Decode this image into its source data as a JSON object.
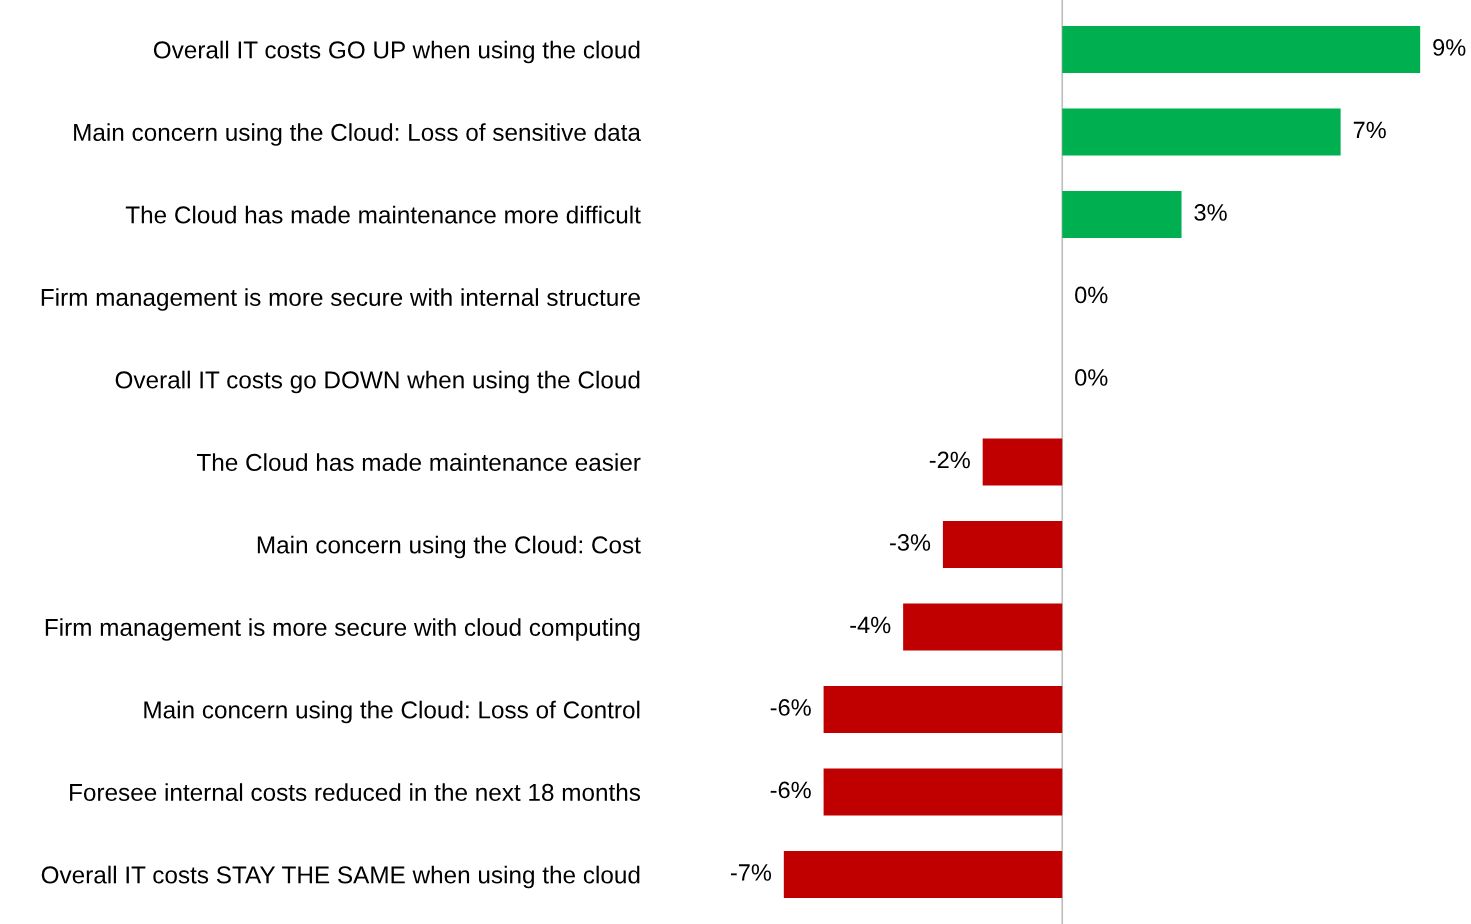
{
  "chart_data": {
    "type": "bar",
    "orientation": "horizontal",
    "categories": [
      "Overall IT costs GO UP when using the cloud",
      "Main concern using the Cloud: Loss of sensitive data",
      "The Cloud has made maintenance more difficult",
      "Firm management is more secure with internal structure",
      "Overall IT costs go DOWN when using the Cloud",
      "The Cloud has made maintenance easier",
      "Main concern using the Cloud: Cost",
      "Firm management is more secure with cloud computing",
      "Main concern using the Cloud: Loss of Control",
      "Foresee internal costs reduced in the next 18 months",
      "Overall IT costs STAY THE SAME when using the cloud"
    ],
    "values": [
      9,
      7,
      3,
      0,
      0,
      -2,
      -3,
      -4,
      -6,
      -6,
      -7
    ],
    "value_labels": [
      "9%",
      "7%",
      "3%",
      "0%",
      "0%",
      "-2%",
      "-3%",
      "-4%",
      "-6%",
      "-6%",
      "-7%"
    ],
    "colors": [
      "#00b050",
      "#00b050",
      "#00b050",
      "#00b050",
      "#00b050",
      "#c00000",
      "#c00000",
      "#c00000",
      "#c00000",
      "#c00000",
      "#c00000"
    ],
    "tick_labels": "y",
    "grid": false,
    "legend": false
  }
}
